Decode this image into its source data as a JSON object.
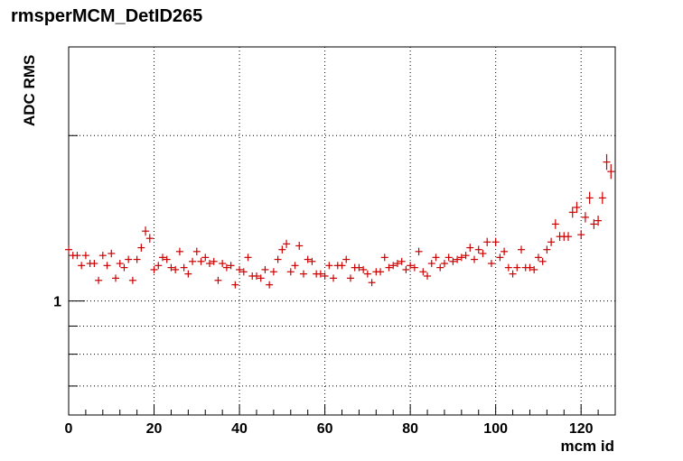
{
  "chart_data": {
    "type": "scatter",
    "title": "rmsperMCM_DetID265",
    "xlabel": "mcm id",
    "ylabel": "ADC RMS",
    "xlim": [
      0,
      128
    ],
    "ylim": [
      0.62,
      2.9
    ],
    "yscale": "log",
    "grid": true,
    "marker_color": "#cc0000",
    "x_ticks": [
      0,
      20,
      40,
      60,
      80,
      100,
      120
    ],
    "y_ticks": [
      {
        "value": 1,
        "label": "1"
      }
    ],
    "series": [
      {
        "x": [
          0,
          1,
          2,
          3,
          4,
          5,
          6,
          7,
          8,
          9,
          10,
          11,
          12,
          13,
          14,
          15,
          16,
          17,
          18,
          19,
          20,
          21,
          22,
          23,
          24,
          25,
          26,
          27,
          28,
          29,
          30,
          31,
          32,
          33,
          34,
          35,
          36,
          37,
          38,
          39,
          40,
          41,
          42,
          43,
          44,
          45,
          46,
          47,
          48,
          49,
          50,
          51,
          52,
          53,
          54,
          55,
          56,
          57,
          58,
          59,
          60,
          61,
          62,
          63,
          64,
          65,
          66,
          67,
          68,
          69,
          70,
          71,
          72,
          73,
          74,
          75,
          76,
          77,
          78,
          79,
          80,
          81,
          82,
          83,
          84,
          85,
          86,
          87,
          88,
          89,
          90,
          91,
          92,
          93,
          94,
          95,
          96,
          97,
          98,
          99,
          100,
          101,
          102,
          103,
          104,
          105,
          106,
          107,
          108,
          109,
          110,
          111,
          112,
          113,
          114,
          115,
          116,
          117,
          118,
          119,
          120,
          121,
          122,
          123,
          124,
          125,
          126,
          127
        ],
        "y": [
          1.24,
          1.21,
          1.21,
          1.16,
          1.21,
          1.17,
          1.17,
          1.09,
          1.21,
          1.16,
          1.22,
          1.1,
          1.17,
          1.15,
          1.19,
          1.09,
          1.19,
          1.25,
          1.34,
          1.3,
          1.14,
          1.16,
          1.2,
          1.19,
          1.15,
          1.14,
          1.23,
          1.15,
          1.12,
          1.18,
          1.23,
          1.18,
          1.2,
          1.17,
          1.18,
          1.09,
          1.17,
          1.15,
          1.16,
          1.07,
          1.14,
          1.13,
          1.2,
          1.11,
          1.11,
          1.1,
          1.14,
          1.07,
          1.13,
          1.19,
          1.24,
          1.27,
          1.13,
          1.16,
          1.26,
          1.12,
          1.19,
          1.18,
          1.12,
          1.12,
          1.11,
          1.16,
          1.1,
          1.16,
          1.16,
          1.19,
          1.1,
          1.15,
          1.15,
          1.14,
          1.12,
          1.08,
          1.13,
          1.13,
          1.2,
          1.15,
          1.16,
          1.17,
          1.18,
          1.14,
          1.16,
          1.15,
          1.23,
          1.13,
          1.11,
          1.17,
          1.2,
          1.15,
          1.17,
          1.2,
          1.18,
          1.19,
          1.2,
          1.21,
          1.25,
          1.19,
          1.24,
          1.22,
          1.28,
          1.17,
          1.28,
          1.2,
          1.23,
          1.15,
          1.12,
          1.15,
          1.24,
          1.15,
          1.15,
          1.14,
          1.2,
          1.18,
          1.24,
          1.28,
          1.38,
          1.31,
          1.31,
          1.31,
          1.45,
          1.48,
          1.32,
          1.42,
          1.54,
          1.38,
          1.4,
          1.54,
          1.79,
          1.72
        ]
      }
    ]
  }
}
